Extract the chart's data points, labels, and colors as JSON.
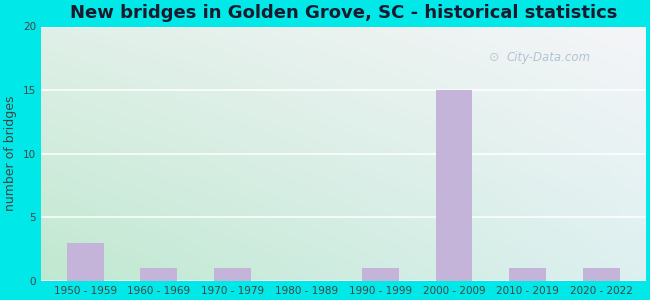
{
  "title": "New bridges in Golden Grove, SC - historical statistics",
  "categories": [
    "1950 - 1959",
    "1960 - 1969",
    "1970 - 1979",
    "1980 - 1989",
    "1990 - 1999",
    "2000 - 2009",
    "2010 - 2019",
    "2020 - 2022"
  ],
  "values": [
    3,
    1,
    1,
    0,
    1,
    15,
    1,
    1
  ],
  "bar_color": "#c5b4d9",
  "ylabel": "number of bridges",
  "ylim": [
    0,
    20
  ],
  "yticks": [
    0,
    5,
    10,
    15,
    20
  ],
  "background_outer": "#00e8e8",
  "background_plot_topleft": "#e8f5e9",
  "background_plot_topright": "#f0f8ff",
  "background_plot_bottom": "#c8eedd",
  "title_fontsize": 13,
  "title_color": "#1a1a2e",
  "axis_label_fontsize": 9,
  "tick_fontsize": 7.5,
  "watermark_text": "City-Data.com",
  "watermark_color": "#aabbcc",
  "grid_color": "#e0eeee"
}
